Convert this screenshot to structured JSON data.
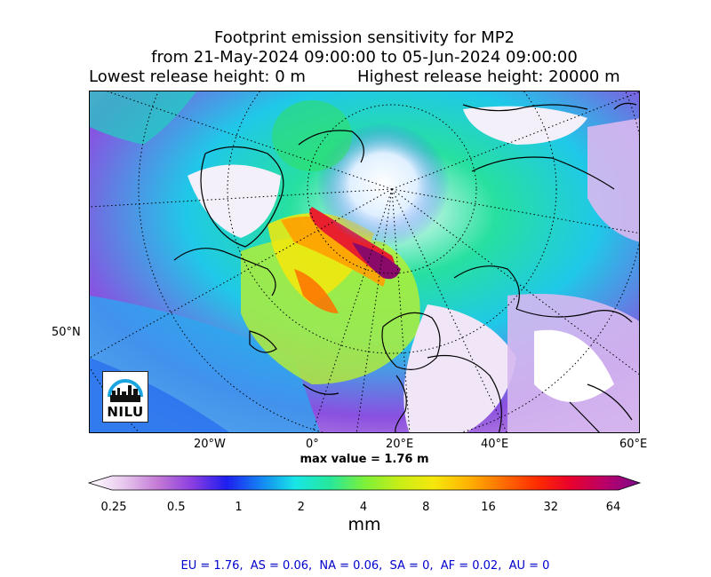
{
  "title": {
    "line1": "Footprint emission sensitivity for MP2",
    "line2": "from 21-May-2024 09:00:00 to 05-Jun-2024 09:00:00",
    "line3_left": "Lowest release height: 0 m",
    "line3_right": "Highest release height: 20000 m"
  },
  "map": {
    "projection": "polar stereographic (north)",
    "lat_label": "50°N",
    "lon_labels": [
      "20°W",
      "0°",
      "20°E",
      "40°E",
      "60°E"
    ],
    "max_value_text": "max value = 1.76 m"
  },
  "colorbar": {
    "label": "mm",
    "ticks": [
      "0.25",
      "0.5",
      "1",
      "2",
      "4",
      "8",
      "16",
      "32",
      "64"
    ],
    "colors": [
      "#ffffff",
      "#e8c8ee",
      "#c47ad6",
      "#8a3de0",
      "#1e1ef0",
      "#1486f2",
      "#18e6e6",
      "#27e89a",
      "#7cf03a",
      "#c8ee18",
      "#f5e80c",
      "#ffb400",
      "#ff7000",
      "#ff2c00",
      "#e8002e",
      "#b8006a",
      "#7a0a8a"
    ]
  },
  "logo": {
    "text": "NILU",
    "icon": "nilu-logo-icon"
  },
  "stats": "EU = 1.76,  AS = 0.06,  NA = 0.06,  SA = 0,  AF = 0.02,  AU = 0"
}
